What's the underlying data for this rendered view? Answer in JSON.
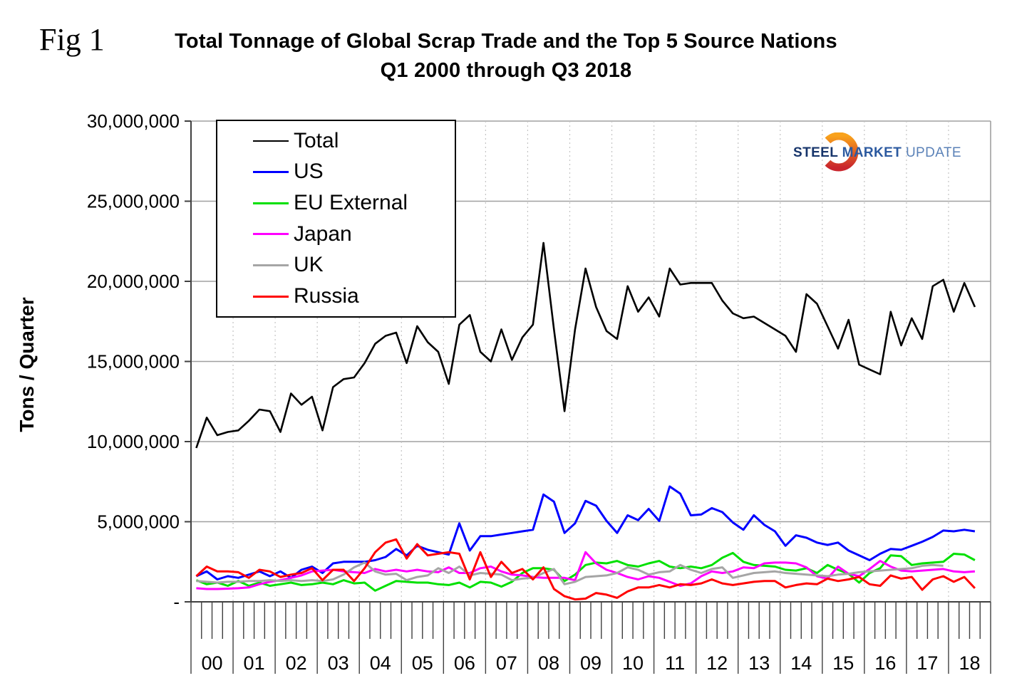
{
  "figure": {
    "fig_label": "Fig 1",
    "title_line1": "Total Tonnage of Global Scrap Trade and the Top 5 Source Nations",
    "title_line2": "Q1 2000 through Q3 2018"
  },
  "y_axis": {
    "label": "Tons / Quarter",
    "ticks": [
      {
        "value": 30,
        "label": "30,000,000"
      },
      {
        "value": 25,
        "label": "25,000,000"
      },
      {
        "value": 20,
        "label": "20,000,000"
      },
      {
        "value": 15,
        "label": "15,000,000"
      },
      {
        "value": 10,
        "label": "10,000,000"
      },
      {
        "value": 5,
        "label": "5,000,000"
      },
      {
        "value": 0,
        "label": "-"
      }
    ]
  },
  "x_axis": {
    "years": [
      "00",
      "01",
      "02",
      "03",
      "04",
      "05",
      "06",
      "07",
      "08",
      "09",
      "10",
      "11",
      "12",
      "13",
      "14",
      "15",
      "16",
      "17",
      "18"
    ]
  },
  "logo": {
    "steel": "STEEL",
    "market": "MARKET",
    "update": "UPDATE",
    "arc_top_color": "#F9A21B",
    "arc_bottom_color": "#C9252C"
  },
  "colors": {
    "gridline": "#a0a0a0",
    "year_gridline": "#c4c4c4",
    "axis": "#404040",
    "label": "#000000"
  },
  "chart_data": {
    "type": "line",
    "title": "Total Tonnage of Global Scrap Trade and the Top 5 Source Nations",
    "subtitle": "Q1 2000 through Q3 2018",
    "xlabel": "",
    "ylabel": "Tons / Quarter",
    "ylim": [
      0,
      30000000
    ],
    "grid": "horizontal solid, vertical dotted at year boundaries",
    "legend_position": "top-left inside plot",
    "x_unit": "quarters, Q1 2000 through Q3 2018",
    "quarters_per_year": 4,
    "values_unit": "millions of tons per quarter",
    "series": [
      {
        "name": "Total",
        "color": "#000000",
        "width": 2.6,
        "values": [
          9.6,
          11.5,
          10.4,
          10.6,
          10.7,
          11.3,
          12.0,
          11.9,
          10.6,
          13.0,
          12.3,
          12.8,
          10.7,
          13.4,
          13.9,
          14.0,
          14.9,
          16.1,
          16.6,
          16.8,
          14.9,
          17.2,
          16.2,
          15.6,
          13.6,
          17.3,
          17.9,
          15.6,
          15.0,
          17.0,
          15.1,
          16.5,
          17.3,
          22.4,
          17.0,
          11.9,
          17.0,
          20.8,
          18.4,
          16.9,
          16.4,
          19.7,
          18.1,
          19.0,
          17.8,
          20.8,
          19.8,
          19.9,
          19.9,
          19.9,
          18.8,
          18.0,
          17.7,
          17.8,
          17.4,
          17.0,
          16.6,
          15.6,
          19.2,
          18.6,
          17.2,
          15.8,
          17.6,
          14.8,
          14.5,
          14.2,
          18.1,
          16.0,
          17.7,
          16.4,
          19.7,
          20.1,
          18.1,
          19.9,
          18.4
        ]
      },
      {
        "name": "US",
        "color": "#0000ff",
        "width": 3,
        "values": [
          1.6,
          1.9,
          1.4,
          1.6,
          1.5,
          1.7,
          1.9,
          1.6,
          1.9,
          1.5,
          2.0,
          2.2,
          1.8,
          2.4,
          2.5,
          2.5,
          2.5,
          2.6,
          2.8,
          3.3,
          2.9,
          3.5,
          3.25,
          3.1,
          2.95,
          4.9,
          3.2,
          4.1,
          4.1,
          4.2,
          4.3,
          4.4,
          4.5,
          6.7,
          6.25,
          4.3,
          4.9,
          6.3,
          6.0,
          5.05,
          4.3,
          5.4,
          5.1,
          5.8,
          5.05,
          7.2,
          6.75,
          5.4,
          5.45,
          5.85,
          5.6,
          4.95,
          4.5,
          5.4,
          4.8,
          4.4,
          3.5,
          4.15,
          4.0,
          3.7,
          3.55,
          3.7,
          3.2,
          2.9,
          2.6,
          3.0,
          3.3,
          3.25,
          3.5,
          3.75,
          4.05,
          4.45,
          4.4,
          4.5,
          4.4
        ]
      },
      {
        "name": "EU External",
        "color": "#00e000",
        "width": 3,
        "values": [
          1.35,
          1.1,
          1.2,
          1.0,
          1.3,
          1.0,
          1.2,
          1.0,
          1.1,
          1.2,
          1.05,
          1.1,
          1.2,
          1.1,
          1.35,
          1.15,
          1.2,
          0.7,
          1.0,
          1.3,
          1.25,
          1.2,
          1.2,
          1.1,
          1.05,
          1.2,
          0.9,
          1.25,
          1.2,
          0.95,
          1.25,
          1.8,
          2.1,
          2.1,
          2.0,
          1.3,
          1.7,
          2.3,
          2.45,
          2.4,
          2.55,
          2.3,
          2.2,
          2.4,
          2.55,
          2.2,
          2.1,
          2.2,
          2.1,
          2.3,
          2.75,
          3.05,
          2.5,
          2.3,
          2.25,
          2.2,
          2.0,
          1.95,
          2.1,
          1.8,
          2.3,
          2.0,
          1.75,
          1.2,
          1.8,
          2.1,
          2.9,
          2.85,
          2.3,
          2.4,
          2.45,
          2.5,
          3.0,
          2.95,
          2.6
        ]
      },
      {
        "name": "Japan",
        "color": "#ff00ff",
        "width": 3,
        "values": [
          0.85,
          0.8,
          0.8,
          0.82,
          0.85,
          0.9,
          1.1,
          1.25,
          1.35,
          1.5,
          1.65,
          1.9,
          1.95,
          2.0,
          1.9,
          1.85,
          1.8,
          2.05,
          1.9,
          2.0,
          1.9,
          2.0,
          1.9,
          1.85,
          2.15,
          1.8,
          1.8,
          2.1,
          2.2,
          1.9,
          1.7,
          1.65,
          1.55,
          1.5,
          1.5,
          1.5,
          1.35,
          3.1,
          2.4,
          2.0,
          1.8,
          1.55,
          1.4,
          1.6,
          1.5,
          1.25,
          1.0,
          1.15,
          1.6,
          1.9,
          1.8,
          1.9,
          2.15,
          2.1,
          2.4,
          2.45,
          2.45,
          2.4,
          2.15,
          1.6,
          1.45,
          2.2,
          1.75,
          1.6,
          2.05,
          2.55,
          2.2,
          1.95,
          1.9,
          1.95,
          2.0,
          2.05,
          1.9,
          1.85,
          1.9
        ]
      },
      {
        "name": "UK",
        "color": "#a5a5a5",
        "width": 3,
        "values": [
          1.3,
          1.25,
          1.2,
          1.25,
          1.25,
          1.3,
          1.3,
          1.35,
          1.3,
          1.35,
          1.3,
          1.35,
          1.3,
          1.4,
          1.7,
          2.15,
          2.45,
          1.9,
          1.7,
          1.75,
          1.35,
          1.55,
          1.65,
          2.1,
          1.8,
          2.2,
          1.65,
          1.8,
          1.75,
          1.7,
          1.35,
          1.45,
          1.5,
          1.8,
          2.05,
          1.1,
          1.25,
          1.55,
          1.6,
          1.65,
          1.8,
          2.15,
          2.0,
          1.7,
          1.85,
          1.9,
          2.3,
          2.0,
          1.8,
          2.05,
          2.15,
          1.5,
          1.65,
          1.8,
          1.85,
          1.9,
          1.8,
          1.75,
          1.7,
          1.65,
          1.6,
          1.7,
          1.75,
          1.85,
          1.9,
          1.95,
          2.0,
          2.05,
          2.1,
          2.25,
          2.3,
          2.25,
          null,
          null,
          null
        ]
      },
      {
        "name": "Russia",
        "color": "#ff0000",
        "width": 3,
        "values": [
          1.6,
          2.2,
          1.9,
          1.9,
          1.85,
          1.5,
          2.0,
          1.9,
          1.55,
          1.7,
          1.8,
          2.1,
          1.35,
          2.0,
          2.0,
          1.3,
          2.1,
          3.1,
          3.7,
          3.9,
          2.7,
          3.6,
          2.9,
          3.0,
          3.1,
          3.0,
          1.4,
          3.1,
          1.55,
          2.5,
          1.8,
          2.05,
          1.4,
          2.15,
          0.8,
          0.35,
          0.15,
          0.2,
          0.55,
          0.45,
          0.25,
          0.65,
          0.9,
          0.9,
          1.05,
          0.9,
          1.1,
          1.05,
          1.15,
          1.4,
          1.15,
          1.05,
          1.15,
          1.25,
          1.3,
          1.3,
          0.9,
          1.05,
          1.15,
          1.1,
          1.45,
          1.3,
          1.4,
          1.55,
          1.1,
          1.0,
          1.65,
          1.45,
          1.55,
          0.75,
          1.4,
          1.6,
          1.25,
          1.55,
          0.85
        ]
      }
    ]
  }
}
